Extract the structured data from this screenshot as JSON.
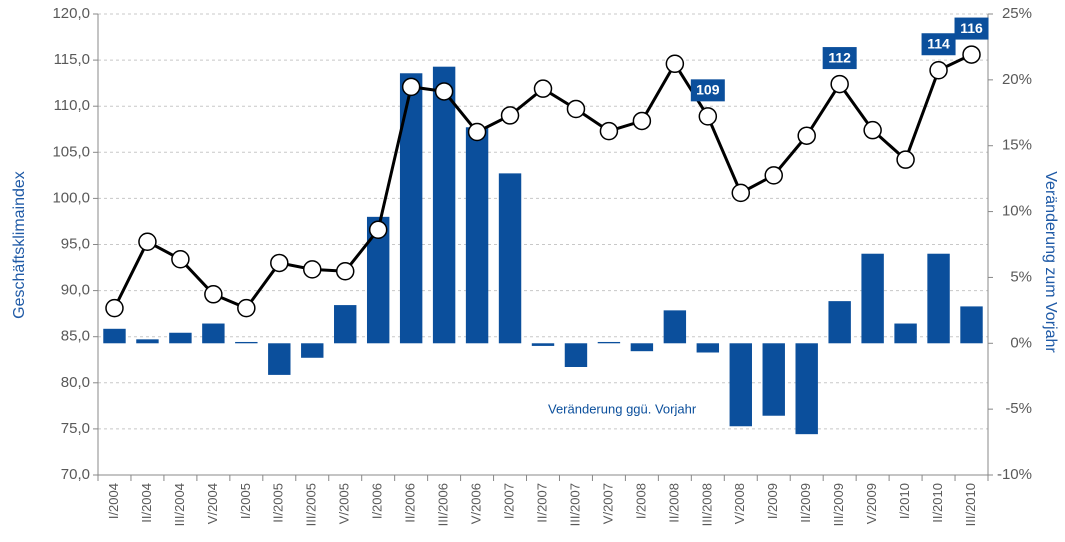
{
  "chart_data": {
    "type": "bar_line",
    "ylabel": "Geschäftsklimaindex",
    "y2label": "Veränderung zum Vorjahr",
    "annotation": "Veränderung ggü. Vorjahr",
    "categories": [
      "I/2004",
      "II/2004",
      "III/2004",
      "V/2004",
      "I/2005",
      "II/2005",
      "III/2005",
      "V/2005",
      "I/2006",
      "II/2006",
      "III/2006",
      "V/2006",
      "I/2007",
      "II/2007",
      "III/2007",
      "V/2007",
      "I/2008",
      "II/2008",
      "III/2008",
      "V/2008",
      "I/2009",
      "II/2009",
      "III/2009",
      "V/2009",
      "I/2010",
      "II/2010",
      "III/2010"
    ],
    "series": [
      {
        "type": "bar",
        "axis": "y2",
        "color": "#0b4f9c",
        "values": [
          1.1,
          0.3,
          0.8,
          1.5,
          0.1,
          -2.4,
          -1.1,
          2.9,
          9.6,
          20.5,
          21.0,
          16.4,
          12.9,
          -0.2,
          -1.8,
          0.1,
          -0.6,
          2.5,
          -0.7,
          -6.3,
          -5.5,
          -6.9,
          3.2,
          6.8,
          1.5,
          6.8,
          2.8
        ]
      },
      {
        "type": "line",
        "axis": "y",
        "color": "#000000",
        "marker_color": "#ffffff",
        "label_color": "#0b4f9c",
        "values": [
          88.1,
          95.3,
          93.4,
          89.6,
          88.1,
          93.0,
          92.3,
          92.1,
          96.6,
          112.1,
          111.6,
          107.2,
          109.0,
          111.9,
          109.7,
          107.3,
          108.4,
          114.6,
          108.9,
          100.6,
          102.5,
          106.8,
          112.4,
          107.4,
          104.2,
          113.9,
          115.6
        ],
        "value_labels": [
          null,
          null,
          null,
          null,
          null,
          null,
          null,
          null,
          null,
          null,
          null,
          null,
          null,
          null,
          null,
          null,
          null,
          null,
          "109",
          null,
          null,
          null,
          "112",
          null,
          null,
          "114",
          "116"
        ]
      }
    ],
    "ylim": [
      70,
      120
    ],
    "yticks": [
      {
        "value": 70,
        "label": "70,0"
      },
      {
        "value": 75,
        "label": "75,0"
      },
      {
        "value": 80,
        "label": "80,0"
      },
      {
        "value": 85,
        "label": "85,0"
      },
      {
        "value": 90,
        "label": "90,0"
      },
      {
        "value": 95,
        "label": "95,0"
      },
      {
        "value": 100,
        "label": "100,0"
      },
      {
        "value": 105,
        "label": "105,0"
      },
      {
        "value": 110,
        "label": "110,0"
      },
      {
        "value": 115,
        "label": "115,0"
      },
      {
        "value": 120,
        "label": "120,0"
      }
    ],
    "y2lim": [
      -10,
      25
    ],
    "y2ticks": [
      {
        "value": -10,
        "label": "-10%"
      },
      {
        "value": -5,
        "label": "-5%"
      },
      {
        "value": 0,
        "label": "0%"
      },
      {
        "value": 5,
        "label": "5%"
      },
      {
        "value": 10,
        "label": "10%"
      },
      {
        "value": 15,
        "label": "15%"
      },
      {
        "value": 20,
        "label": "20%"
      },
      {
        "value": 25,
        "label": "25%"
      }
    ],
    "grid": true
  }
}
